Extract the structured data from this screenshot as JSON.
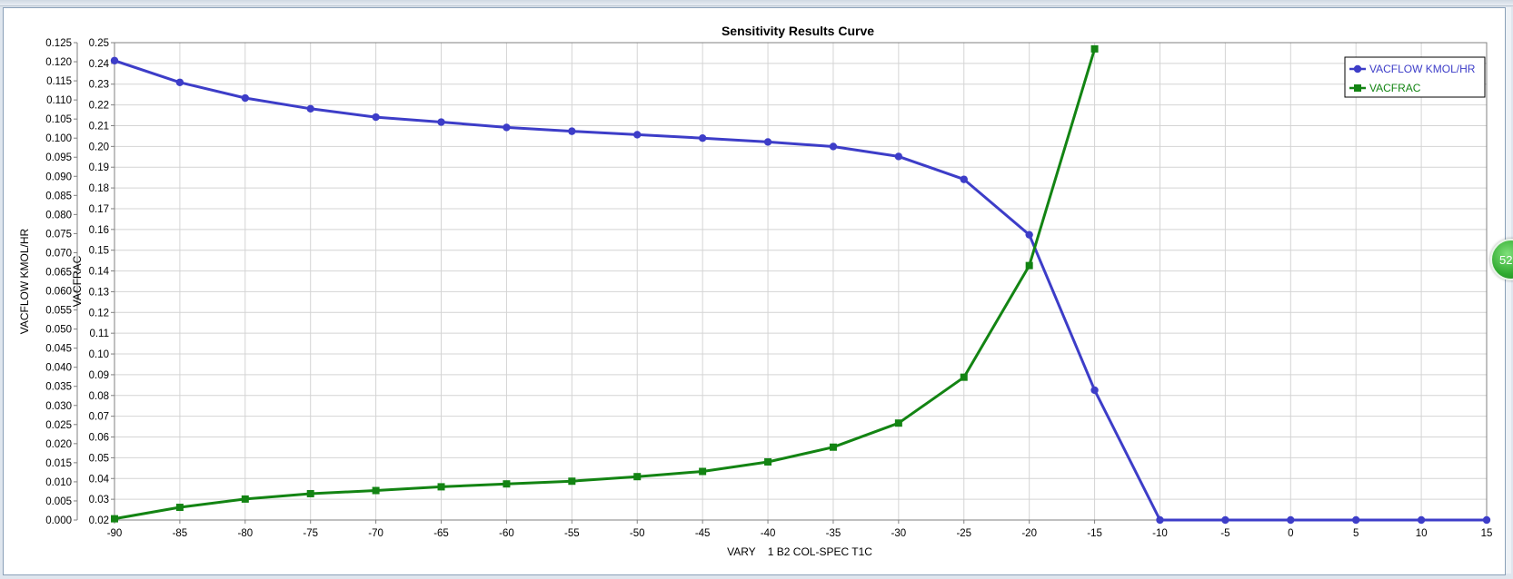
{
  "badge": {
    "text": "52"
  },
  "chart_data": {
    "type": "line",
    "title": "Sensitivity Results Curve",
    "xlabel": "VARY    1 B2 COL-SPEC T1C",
    "x": [
      -90,
      -85,
      -80,
      -75,
      -70,
      -65,
      -60,
      -55,
      -50,
      -45,
      -40,
      -35,
      -30,
      -25,
      -20,
      -15,
      -10,
      -5,
      0,
      5,
      10,
      15
    ],
    "xlim": [
      -90,
      15
    ],
    "x_ticks": [
      "-90",
      "-85",
      "-80",
      "-75",
      "-70",
      "-65",
      "-60",
      "-55",
      "-50",
      "-45",
      "-40",
      "-35",
      "-30",
      "-25",
      "-20",
      "-15",
      "-10",
      "-5",
      "0",
      "5",
      "10",
      "15"
    ],
    "grid": true,
    "legend_position": "top-right",
    "y_axes": [
      {
        "label": "VACFLOW KMOL/HR",
        "lim": [
          0.0,
          0.125
        ],
        "ticks": [
          "0.000",
          "0.005",
          "0.010",
          "0.015",
          "0.020",
          "0.025",
          "0.030",
          "0.035",
          "0.040",
          "0.045",
          "0.050",
          "0.055",
          "0.060",
          "0.065",
          "0.070",
          "0.075",
          "0.080",
          "0.085",
          "0.090",
          "0.095",
          "0.100",
          "0.105",
          "0.110",
          "0.115",
          "0.120",
          "0.125"
        ]
      },
      {
        "label": "VACFRAC",
        "lim": [
          0.02,
          0.25
        ],
        "ticks": [
          "0.02",
          "0.03",
          "0.04",
          "0.05",
          "0.06",
          "0.07",
          "0.08",
          "0.09",
          "0.10",
          "0.11",
          "0.12",
          "0.13",
          "0.14",
          "0.15",
          "0.16",
          "0.17",
          "0.18",
          "0.19",
          "0.20",
          "0.21",
          "0.22",
          "0.23",
          "0.24",
          "0.25"
        ]
      }
    ],
    "series": [
      {
        "name": "VACFLOW KMOL/HR",
        "axis": 0,
        "color": "#3d3dc8",
        "marker": "circle",
        "x": [
          -90,
          -85,
          -80,
          -75,
          -70,
          -65,
          -60,
          -55,
          -50,
          -45,
          -40,
          -35,
          -30,
          -25,
          -20,
          -15,
          -10,
          -5,
          0,
          5,
          10,
          15
        ],
        "values": [
          0.1203,
          0.1146,
          0.1105,
          0.1077,
          0.1055,
          0.1042,
          0.1028,
          0.1018,
          0.1009,
          0.1,
          0.099,
          0.0978,
          0.0952,
          0.0892,
          0.0747,
          0.034,
          0.0,
          0.0,
          0.0,
          0.0,
          0.0,
          0.0
        ]
      },
      {
        "name": "VACFRAC",
        "axis": 1,
        "color": "#138413",
        "marker": "square",
        "x": [
          -90,
          -85,
          -80,
          -75,
          -70,
          -65,
          -60,
          -55,
          -50,
          -45,
          -40,
          -35,
          -30,
          -25,
          -20,
          -15
        ],
        "values": [
          0.0206,
          0.0261,
          0.0301,
          0.0327,
          0.0342,
          0.036,
          0.0374,
          0.0387,
          0.0409,
          0.0434,
          0.048,
          0.0551,
          0.0667,
          0.0888,
          0.1426,
          0.247
        ]
      }
    ]
  }
}
